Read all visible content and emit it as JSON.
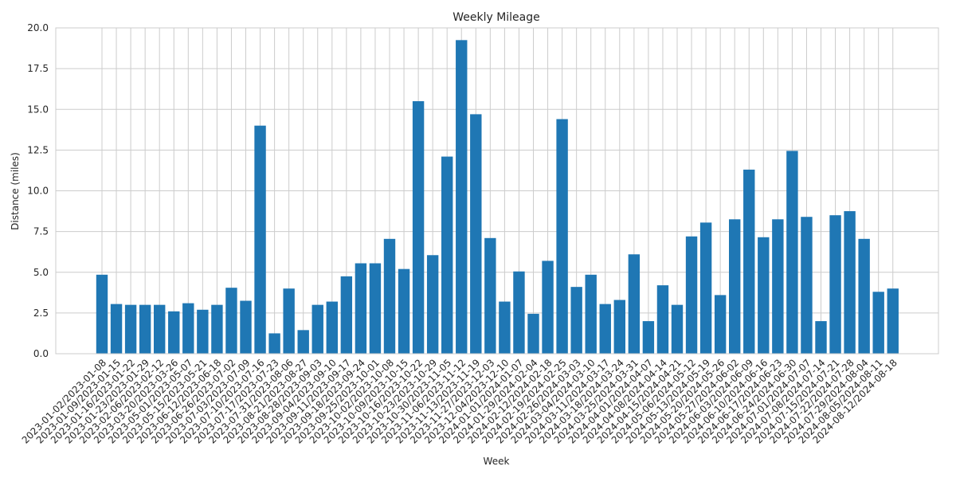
{
  "chart_data": {
    "type": "bar",
    "title": "Weekly Mileage",
    "xlabel": "Week",
    "ylabel": "Distance (miles)",
    "ylim": [
      0,
      20
    ],
    "yticks": [
      "0.0",
      "2.5",
      "5.0",
      "7.5",
      "10.0",
      "12.5",
      "15.0",
      "17.5",
      "20.0"
    ],
    "grid": true,
    "bar_color": "#1f77b4",
    "categories": [
      "2023-01-02/2023-01-08",
      "2023-01-09/2023-01-15",
      "2023-01-16/2023-01-22",
      "2023-01-23/2023-01-29",
      "2023-02-06/2023-02-12",
      "2023-03-20/2023-03-26",
      "2023-05-01/2023-05-07",
      "2023-05-15/2023-05-21",
      "2023-06-12/2023-06-18",
      "2023-06-26/2023-07-02",
      "2023-07-03/2023-07-09",
      "2023-07-10/2023-07-16",
      "2023-07-17/2023-07-23",
      "2023-07-31/2023-08-06",
      "2023-08-21/2023-08-27",
      "2023-08-28/2023-09-03",
      "2023-09-04/2023-09-10",
      "2023-09-11/2023-09-17",
      "2023-09-18/2023-09-24",
      "2023-09-25/2023-10-01",
      "2023-10-02/2023-10-08",
      "2023-10-09/2023-10-15",
      "2023-10-16/2023-10-22",
      "2023-10-23/2023-10-29",
      "2023-10-30/2023-11-05",
      "2023-11-06/2023-11-12",
      "2023-11-13/2023-11-19",
      "2023-11-27/2023-12-03",
      "2023-12-04/2023-12-10",
      "2024-01-01/2024-01-07",
      "2024-01-29/2024-02-04",
      "2024-02-12/2024-02-18",
      "2024-02-19/2024-02-25",
      "2024-02-26/2024-03-03",
      "2024-03-04/2024-03-10",
      "2024-03-11/2024-03-17",
      "2024-03-18/2024-03-24",
      "2024-03-25/2024-03-31",
      "2024-04-01/2024-04-07",
      "2024-04-08/2024-04-14",
      "2024-04-15/2024-04-21",
      "2024-05-06/2024-05-12",
      "2024-05-13/2024-05-19",
      "2024-05-20/2024-05-26",
      "2024-05-27/2024-06-02",
      "2024-06-03/2024-06-09",
      "2024-06-10/2024-06-16",
      "2024-06-17/2024-06-23",
      "2024-06-24/2024-06-30",
      "2024-07-01/2024-07-07",
      "2024-07-08/2024-07-14",
      "2024-07-15/2024-07-21",
      "2024-07-22/2024-07-28",
      "2024-07-29/2024-08-04",
      "2024-08-05/2024-08-11",
      "2024-08-12/2024-08-18"
    ],
    "values": [
      4.85,
      3.05,
      3.0,
      3.0,
      3.0,
      2.6,
      3.1,
      2.7,
      3.0,
      4.05,
      3.25,
      14.0,
      1.25,
      4.0,
      1.45,
      3.0,
      3.2,
      4.75,
      5.55,
      5.55,
      7.05,
      5.2,
      15.5,
      6.05,
      12.1,
      19.25,
      14.7,
      7.1,
      3.2,
      5.05,
      2.45,
      5.7,
      14.4,
      4.1,
      4.85,
      3.05,
      3.3,
      6.1,
      2.0,
      4.2,
      3.0,
      7.2,
      8.05,
      3.6,
      8.25,
      11.3,
      7.15,
      8.25,
      12.45,
      8.4,
      2.0,
      8.5,
      8.75,
      7.05,
      3.8,
      4.0
    ]
  }
}
